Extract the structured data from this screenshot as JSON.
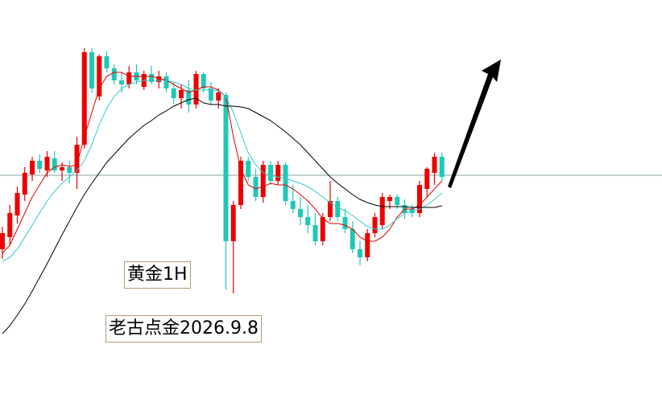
{
  "chart_data": {
    "type": "candlestick",
    "up_color": "#ee0000",
    "down_color": "#1fc8b4",
    "ylim": [
      0,
      500
    ],
    "price_line": 282,
    "price_line_color": "#8aa0a0",
    "candles": [
      [
        190,
        218,
        178,
        210
      ],
      [
        205,
        245,
        195,
        235
      ],
      [
        232,
        268,
        222,
        260
      ],
      [
        258,
        292,
        250,
        285
      ],
      [
        283,
        305,
        275,
        300
      ],
      [
        300,
        308,
        285,
        290
      ],
      [
        288,
        312,
        280,
        305
      ],
      [
        303,
        312,
        285,
        288
      ],
      [
        288,
        298,
        275,
        292
      ],
      [
        292,
        300,
        272,
        285
      ],
      [
        285,
        330,
        265,
        320
      ],
      [
        320,
        440,
        315,
        435
      ],
      [
        435,
        440,
        385,
        390
      ],
      [
        380,
        432,
        375,
        430
      ],
      [
        430,
        436,
        410,
        415
      ],
      [
        415,
        420,
        395,
        400
      ],
      [
        400,
        410,
        385,
        395
      ],
      [
        395,
        418,
        390,
        410
      ],
      [
        410,
        420,
        395,
        400
      ],
      [
        392,
        412,
        388,
        408
      ],
      [
        408,
        418,
        395,
        398
      ],
      [
        398,
        412,
        390,
        405
      ],
      [
        405,
        410,
        385,
        390
      ],
      [
        390,
        398,
        370,
        378
      ],
      [
        378,
        395,
        365,
        388
      ],
      [
        388,
        400,
        360,
        370
      ],
      [
        370,
        412,
        365,
        408
      ],
      [
        408,
        410,
        385,
        390
      ],
      [
        390,
        398,
        370,
        375
      ],
      [
        375,
        390,
        365,
        385
      ],
      [
        382,
        385,
        140,
        200
      ],
      [
        200,
        250,
        135,
        245
      ],
      [
        245,
        305,
        240,
        300
      ],
      [
        300,
        305,
        275,
        280
      ],
      [
        280,
        290,
        250,
        255
      ],
      [
        255,
        300,
        248,
        295
      ],
      [
        295,
        300,
        270,
        275
      ],
      [
        275,
        300,
        270,
        295
      ],
      [
        295,
        298,
        245,
        250
      ],
      [
        250,
        270,
        235,
        240
      ],
      [
        240,
        255,
        220,
        230
      ],
      [
        230,
        245,
        210,
        220
      ],
      [
        220,
        235,
        195,
        200
      ],
      [
        200,
        235,
        195,
        230
      ],
      [
        230,
        275,
        225,
        250
      ],
      [
        250,
        255,
        225,
        230
      ],
      [
        230,
        240,
        210,
        215
      ],
      [
        215,
        225,
        185,
        190
      ],
      [
        190,
        200,
        170,
        180
      ],
      [
        180,
        215,
        175,
        210
      ],
      [
        210,
        235,
        205,
        230
      ],
      [
        220,
        260,
        215,
        255
      ],
      [
        250,
        258,
        240,
        255
      ],
      [
        255,
        258,
        240,
        245
      ],
      [
        245,
        252,
        228,
        235
      ],
      [
        240,
        245,
        230,
        235
      ],
      [
        235,
        275,
        230,
        270
      ],
      [
        265,
        292,
        255,
        290
      ],
      [
        285,
        310,
        270,
        305
      ],
      [
        305,
        310,
        275,
        280
      ]
    ],
    "series": [
      {
        "color": "#dd0000",
        "values": [
          185,
          195,
          215,
          235,
          255,
          270,
          285,
          292,
          295,
          293,
          295,
          330,
          360,
          390,
          405,
          410,
          410,
          405,
          405,
          405,
          405,
          403,
          400,
          395,
          390,
          385,
          388,
          392,
          392,
          388,
          380,
          330,
          290,
          270,
          265,
          268,
          272,
          270,
          270,
          265,
          258,
          250,
          240,
          228,
          222,
          222,
          220,
          215,
          205,
          200,
          200,
          205,
          215,
          230,
          240,
          240,
          245,
          255,
          265,
          275
        ]
      },
      {
        "color": "#33cccc",
        "values": [
          175,
          180,
          190,
          205,
          220,
          235,
          250,
          262,
          272,
          280,
          288,
          300,
          320,
          345,
          365,
          380,
          390,
          395,
          398,
          400,
          400,
          400,
          400,
          398,
          395,
          390,
          388,
          388,
          388,
          387,
          380,
          360,
          335,
          310,
          295,
          285,
          282,
          280,
          278,
          275,
          272,
          268,
          262,
          255,
          248,
          242,
          238,
          232,
          225,
          218,
          215,
          215,
          220,
          228,
          235,
          238,
          240,
          245,
          252,
          260
        ]
      },
      {
        "color": "#000000",
        "values": [
          85,
          95,
          108,
          122,
          138,
          155,
          172,
          190,
          208,
          225,
          242,
          258,
          272,
          285,
          298,
          308,
          318,
          328,
          336,
          344,
          350,
          357,
          362,
          368,
          372,
          376,
          378,
          372,
          370,
          370,
          368,
          368,
          367,
          365,
          360,
          355,
          350,
          343,
          336,
          328,
          320,
          310,
          300,
          290,
          280,
          272,
          265,
          258,
          252,
          248,
          245,
          243,
          243,
          243,
          243,
          242,
          242,
          242,
          242,
          244
        ]
      }
    ],
    "annotations": [
      "黄金1H",
      "老古点金2026.9.8"
    ]
  }
}
